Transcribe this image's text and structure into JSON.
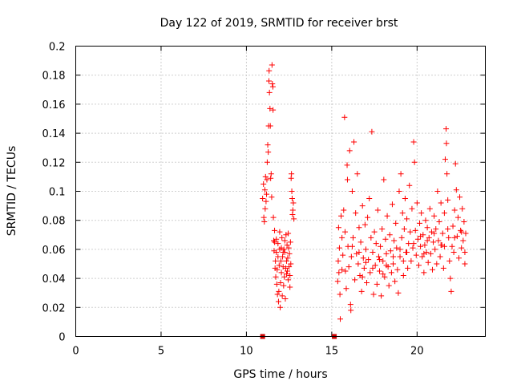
{
  "chart_data": {
    "type": "scatter",
    "title": "Day 122 of 2019, SRMTID for receiver brst",
    "xlabel": "GPS time / hours",
    "ylabel": "SRMTID / TECUs",
    "xlim": [
      0,
      24
    ],
    "ylim": [
      0,
      0.2
    ],
    "xticks": [
      0,
      5,
      10,
      15,
      20
    ],
    "xtick_labels": [
      "0",
      "5",
      "10",
      "15",
      "20"
    ],
    "yticks": [
      0,
      0.02,
      0.04,
      0.06,
      0.08,
      0.1,
      0.12,
      0.14,
      0.16,
      0.18,
      0.2
    ],
    "ytick_labels": [
      "0",
      "0.02",
      "0.04",
      "0.06",
      "0.08",
      "0.1",
      "0.12",
      "0.14",
      "0.16",
      "0.18",
      "0.2"
    ],
    "grid": true,
    "marker": "+",
    "color": "#ff0000",
    "series": [
      {
        "points": [
          [
            10.95,
            0.095
          ],
          [
            11.0,
            0.105
          ],
          [
            11.02,
            0.082
          ],
          [
            11.05,
            0.079
          ],
          [
            11.08,
            0.101
          ],
          [
            11.1,
            0.088
          ],
          [
            11.12,
            0.11
          ],
          [
            11.15,
            0.093
          ],
          [
            11.18,
            0.098
          ],
          [
            11.2,
            0.108
          ],
          [
            11.22,
            0.12
          ],
          [
            11.25,
            0.132
          ],
          [
            11.28,
            0.127
          ],
          [
            11.3,
            0.145
          ],
          [
            11.32,
            0.176
          ],
          [
            11.33,
            0.183
          ],
          [
            11.35,
            0.168
          ],
          [
            11.38,
            0.157
          ],
          [
            11.4,
            0.145
          ],
          [
            11.42,
            0.109
          ],
          [
            11.45,
            0.112
          ],
          [
            11.48,
            0.096
          ],
          [
            11.5,
            0.187
          ],
          [
            11.52,
            0.174
          ],
          [
            11.55,
            0.172
          ],
          [
            11.56,
            0.156
          ],
          [
            11.58,
            0.082
          ],
          [
            11.6,
            0.066
          ],
          [
            11.62,
            0.059
          ],
          [
            11.65,
            0.065
          ],
          [
            11.68,
            0.047
          ],
          [
            11.7,
            0.052
          ],
          [
            11.72,
            0.041
          ],
          [
            11.75,
            0.058
          ],
          [
            11.78,
            0.036
          ],
          [
            11.8,
            0.046
          ],
          [
            11.82,
            0.029
          ],
          [
            11.85,
            0.055
          ],
          [
            11.88,
            0.024
          ],
          [
            11.9,
            0.031
          ],
          [
            11.92,
            0.049
          ],
          [
            11.95,
            0.06
          ],
          [
            11.98,
            0.02
          ],
          [
            12.0,
            0.037
          ],
          [
            12.02,
            0.052
          ],
          [
            12.05,
            0.044
          ],
          [
            12.08,
            0.068
          ],
          [
            12.1,
            0.028
          ],
          [
            12.12,
            0.055
          ],
          [
            12.15,
            0.048
          ],
          [
            12.18,
            0.035
          ],
          [
            12.2,
            0.06
          ],
          [
            12.22,
            0.041
          ],
          [
            12.25,
            0.058
          ],
          [
            12.28,
            0.026
          ],
          [
            12.3,
            0.047
          ],
          [
            12.32,
            0.07
          ],
          [
            12.35,
            0.052
          ],
          [
            12.38,
            0.063
          ],
          [
            12.4,
            0.045
          ],
          [
            12.42,
            0.054
          ],
          [
            12.45,
            0.039
          ],
          [
            12.48,
            0.061
          ],
          [
            12.5,
            0.048
          ],
          [
            12.52,
            0.057
          ],
          [
            12.55,
            0.034
          ],
          [
            12.58,
            0.065
          ],
          [
            12.6,
            0.05
          ],
          [
            12.62,
            0.109
          ],
          [
            12.64,
            0.112
          ],
          [
            12.66,
            0.1
          ],
          [
            12.68,
            0.095
          ],
          [
            12.7,
            0.084
          ],
          [
            12.72,
            0.087
          ],
          [
            12.75,
            0.092
          ],
          [
            12.78,
            0.081
          ],
          [
            11.65,
            0.073
          ],
          [
            11.75,
            0.067
          ],
          [
            11.85,
            0.064
          ],
          [
            11.95,
            0.072
          ],
          [
            12.05,
            0.061
          ],
          [
            12.15,
            0.058
          ],
          [
            12.25,
            0.066
          ],
          [
            12.35,
            0.043
          ],
          [
            12.45,
            0.071
          ],
          [
            12.55,
            0.042
          ],
          [
            15.35,
            0.038
          ],
          [
            15.38,
            0.052
          ],
          [
            15.4,
            0.075
          ],
          [
            15.42,
            0.044
          ],
          [
            15.45,
            0.061
          ],
          [
            15.48,
            0.029
          ],
          [
            15.5,
            0.012
          ],
          [
            15.55,
            0.083
          ],
          [
            15.6,
            0.068
          ],
          [
            15.65,
            0.056
          ],
          [
            15.7,
            0.087
          ],
          [
            15.75,
            0.151
          ],
          [
            15.78,
            0.072
          ],
          [
            15.8,
            0.045
          ],
          [
            15.85,
            0.033
          ],
          [
            15.9,
            0.118
          ],
          [
            15.92,
            0.108
          ],
          [
            15.95,
            0.062
          ],
          [
            16.0,
            0.048
          ],
          [
            16.05,
            0.128
          ],
          [
            16.1,
            0.022
          ],
          [
            16.12,
            0.018
          ],
          [
            16.15,
            0.055
          ],
          [
            16.2,
            0.1
          ],
          [
            16.25,
            0.068
          ],
          [
            16.3,
            0.134
          ],
          [
            16.35,
            0.039
          ],
          [
            16.4,
            0.085
          ],
          [
            16.45,
            0.057
          ],
          [
            16.5,
            0.112
          ],
          [
            16.55,
            0.05
          ],
          [
            16.6,
            0.075
          ],
          [
            16.65,
            0.042
          ],
          [
            16.7,
            0.065
          ],
          [
            16.75,
            0.031
          ],
          [
            16.8,
            0.09
          ],
          [
            16.85,
            0.054
          ],
          [
            16.9,
            0.047
          ],
          [
            16.95,
            0.077
          ],
          [
            17.0,
            0.06
          ],
          [
            17.05,
            0.037
          ],
          [
            17.1,
            0.082
          ],
          [
            17.15,
            0.053
          ],
          [
            17.2,
            0.095
          ],
          [
            17.25,
            0.044
          ],
          [
            17.3,
            0.068
          ],
          [
            17.35,
            0.141
          ],
          [
            17.4,
            0.058
          ],
          [
            17.45,
            0.029
          ],
          [
            17.5,
            0.072
          ],
          [
            17.55,
            0.049
          ],
          [
            17.6,
            0.064
          ],
          [
            17.65,
            0.036
          ],
          [
            17.7,
            0.087
          ],
          [
            17.75,
            0.055
          ],
          [
            17.8,
            0.045
          ],
          [
            17.85,
            0.062
          ],
          [
            17.9,
            0.028
          ],
          [
            17.95,
            0.074
          ],
          [
            18.0,
            0.052
          ],
          [
            18.05,
            0.108
          ],
          [
            18.1,
            0.041
          ],
          [
            18.15,
            0.067
          ],
          [
            18.2,
            0.057
          ],
          [
            18.25,
            0.083
          ],
          [
            18.3,
            0.048
          ],
          [
            18.35,
            0.035
          ],
          [
            18.4,
            0.07
          ],
          [
            18.45,
            0.059
          ],
          [
            18.5,
            0.044
          ],
          [
            18.55,
            0.091
          ],
          [
            18.6,
            0.05
          ],
          [
            18.65,
            0.066
          ],
          [
            18.7,
            0.038
          ],
          [
            18.75,
            0.078
          ],
          [
            18.8,
            0.061
          ],
          [
            18.85,
            0.046
          ],
          [
            18.9,
            0.03
          ],
          [
            18.95,
            0.1
          ],
          [
            19.0,
            0.055
          ],
          [
            19.05,
            0.112
          ],
          [
            19.1,
            0.068
          ],
          [
            19.15,
            0.085
          ],
          [
            19.2,
            0.042
          ],
          [
            19.25,
            0.074
          ],
          [
            19.3,
            0.095
          ],
          [
            19.35,
            0.058
          ],
          [
            19.4,
            0.081
          ],
          [
            19.45,
            0.047
          ],
          [
            19.5,
            0.064
          ],
          [
            19.55,
            0.104
          ],
          [
            19.6,
            0.072
          ],
          [
            19.65,
            0.052
          ],
          [
            19.7,
            0.088
          ],
          [
            19.75,
            0.061
          ],
          [
            19.8,
            0.134
          ],
          [
            19.85,
            0.12
          ],
          [
            19.9,
            0.073
          ],
          [
            19.95,
            0.056
          ],
          [
            20.0,
            0.092
          ],
          [
            20.05,
            0.067
          ],
          [
            20.1,
            0.049
          ],
          [
            20.15,
            0.078
          ],
          [
            20.2,
            0.062
          ],
          [
            20.25,
            0.085
          ],
          [
            20.3,
            0.055
          ],
          [
            20.35,
            0.07
          ],
          [
            20.4,
            0.044
          ],
          [
            20.45,
            0.063
          ],
          [
            20.5,
            0.08
          ],
          [
            20.55,
            0.058
          ],
          [
            20.6,
            0.075
          ],
          [
            20.65,
            0.051
          ],
          [
            20.7,
            0.068
          ],
          [
            20.75,
            0.088
          ],
          [
            20.8,
            0.057
          ],
          [
            20.85,
            0.072
          ],
          [
            20.9,
            0.046
          ],
          [
            20.95,
            0.065
          ],
          [
            21.0,
            0.083
          ],
          [
            21.05,
            0.06
          ],
          [
            21.1,
            0.074
          ],
          [
            21.15,
            0.05
          ],
          [
            21.2,
            0.1
          ],
          [
            21.25,
            0.066
          ],
          [
            21.3,
            0.079
          ],
          [
            21.35,
            0.055
          ],
          [
            21.4,
            0.092
          ],
          [
            21.45,
            0.063
          ],
          [
            21.5,
            0.071
          ],
          [
            21.55,
            0.047
          ],
          [
            21.6,
            0.085
          ],
          [
            21.65,
            0.122
          ],
          [
            21.7,
            0.143
          ],
          [
            21.72,
            0.133
          ],
          [
            21.75,
            0.112
          ],
          [
            21.8,
            0.094
          ],
          [
            21.85,
            0.068
          ],
          [
            21.9,
            0.052
          ],
          [
            21.95,
            0.04
          ],
          [
            22.0,
            0.031
          ],
          [
            22.05,
            0.062
          ],
          [
            22.1,
            0.076
          ],
          [
            22.15,
            0.058
          ],
          [
            22.2,
            0.087
          ],
          [
            22.25,
            0.119
          ],
          [
            22.3,
            0.101
          ],
          [
            22.35,
            0.069
          ],
          [
            22.4,
            0.082
          ],
          [
            22.45,
            0.054
          ],
          [
            22.5,
            0.096
          ],
          [
            22.55,
            0.073
          ],
          [
            22.6,
            0.061
          ],
          [
            22.65,
            0.088
          ],
          [
            22.7,
            0.066
          ],
          [
            22.75,
            0.079
          ],
          [
            22.8,
            0.05
          ],
          [
            22.85,
            0.071
          ],
          [
            16.2,
            0.062
          ],
          [
            16.6,
            0.058
          ],
          [
            17.0,
            0.051
          ],
          [
            17.4,
            0.047
          ],
          [
            17.8,
            0.053
          ],
          [
            18.2,
            0.049
          ],
          [
            18.6,
            0.055
          ],
          [
            19.0,
            0.06
          ],
          [
            19.4,
            0.058
          ],
          [
            19.8,
            0.064
          ],
          [
            20.2,
            0.069
          ],
          [
            20.6,
            0.066
          ],
          [
            21.0,
            0.071
          ],
          [
            21.4,
            0.063
          ],
          [
            21.8,
            0.074
          ],
          [
            22.2,
            0.068
          ],
          [
            22.6,
            0.072
          ],
          [
            15.6,
            0.046
          ],
          [
            16.8,
            0.041
          ],
          [
            18.0,
            0.043
          ],
          [
            19.2,
            0.052
          ],
          [
            20.4,
            0.057
          ],
          [
            21.6,
            0.062
          ],
          [
            22.8,
            0.058
          ]
        ]
      }
    ],
    "gaps": [
      [
        10.95,
        0.0
      ],
      [
        15.15,
        0.0
      ]
    ]
  }
}
